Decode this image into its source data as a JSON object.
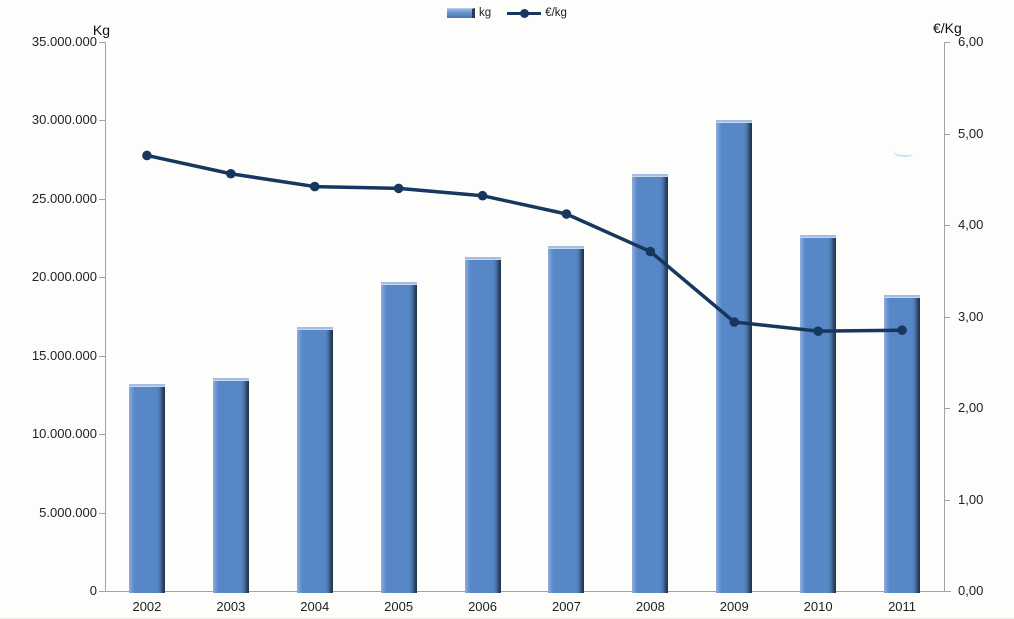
{
  "chart_data": {
    "type": "bar",
    "subtype": "combo-bar-line",
    "title": "",
    "categories": [
      "2002",
      "2003",
      "2004",
      "2005",
      "2006",
      "2007",
      "2008",
      "2009",
      "2010",
      "2011"
    ],
    "series": [
      {
        "name": "kg",
        "type": "bar",
        "axis": "left",
        "values": [
          13200000,
          13550000,
          16800000,
          19700000,
          21300000,
          22000000,
          26600000,
          30000000,
          22700000,
          18900000
        ]
      },
      {
        "name": "€/kg",
        "type": "line",
        "axis": "right",
        "values": [
          4.76,
          4.56,
          4.42,
          4.4,
          4.32,
          4.12,
          3.71,
          2.94,
          2.84,
          2.85
        ]
      }
    ],
    "left_axis": {
      "title": "Kg",
      "min": 0,
      "max": 35000000,
      "step": 5000000,
      "tick_labels": [
        "0",
        "5.000.000",
        "10.000.000",
        "15.000.000",
        "20.000.000",
        "25.000.000",
        "30.000.000",
        "35.000.000"
      ]
    },
    "right_axis": {
      "title": "€/Kg",
      "min": 0,
      "max": 6,
      "step": 1,
      "tick_labels": [
        "0,00",
        "1,00",
        "2,00",
        "3,00",
        "4,00",
        "5,00",
        "6,00"
      ]
    },
    "legend": {
      "position": "top-center",
      "items": [
        {
          "label": "kg"
        },
        {
          "label": "€/kg"
        }
      ]
    },
    "grid": false
  },
  "colors": {
    "bar_fill": "#5787C7",
    "bar_highlight": "#A5BDE2",
    "bar_shadow": "#222F44",
    "line": "#17375E",
    "axis_line": "#A3A3A3",
    "text": "#1F1F1F",
    "background": "#FDFDFB"
  }
}
